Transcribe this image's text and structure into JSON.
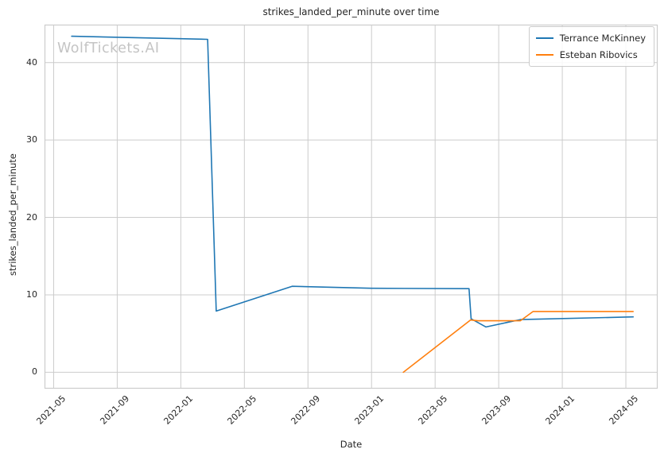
{
  "chart_data": {
    "type": "line",
    "title": "strikes_landed_per_minute over time",
    "xlabel": "Date",
    "ylabel": "strikes_landed_per_minute",
    "watermark": "WolfTickets.AI",
    "grid": true,
    "legend_position": "upper right",
    "x_ticks": [
      "2021-05",
      "2021-09",
      "2022-01",
      "2022-05",
      "2022-09",
      "2023-01",
      "2023-05",
      "2023-09",
      "2024-01",
      "2024-05"
    ],
    "y_ticks": [
      0,
      10,
      20,
      30,
      40
    ],
    "xlim": [
      "2021-04-14",
      "2024-07-01"
    ],
    "ylim": [
      -2.12,
      44.9
    ],
    "series": [
      {
        "name": "Terrance McKinney",
        "color": "#1f77b4",
        "points": [
          [
            "2021-06-05",
            43.4
          ],
          [
            "2022-02-22",
            43.0
          ],
          [
            "2022-03-08",
            7.9
          ],
          [
            "2022-08-01",
            11.1
          ],
          [
            "2023-01-01",
            10.85
          ],
          [
            "2023-07-05",
            10.8
          ],
          [
            "2023-07-09",
            6.9
          ],
          [
            "2023-08-07",
            5.85
          ],
          [
            "2023-10-12",
            6.8
          ],
          [
            "2024-05-15",
            7.15
          ]
        ]
      },
      {
        "name": "Esteban Ribovics",
        "color": "#ff7f0e",
        "points": [
          [
            "2023-03-01",
            0.0
          ],
          [
            "2023-07-08",
            6.75
          ],
          [
            "2023-07-22",
            6.65
          ],
          [
            "2023-10-12",
            6.65
          ],
          [
            "2023-11-06",
            7.85
          ],
          [
            "2024-05-15",
            7.85
          ]
        ]
      }
    ],
    "colors": {
      "grid": "#cccccc",
      "spine": "#cccccc",
      "text": "#262626",
      "watermark": "#c4c4c4"
    }
  }
}
